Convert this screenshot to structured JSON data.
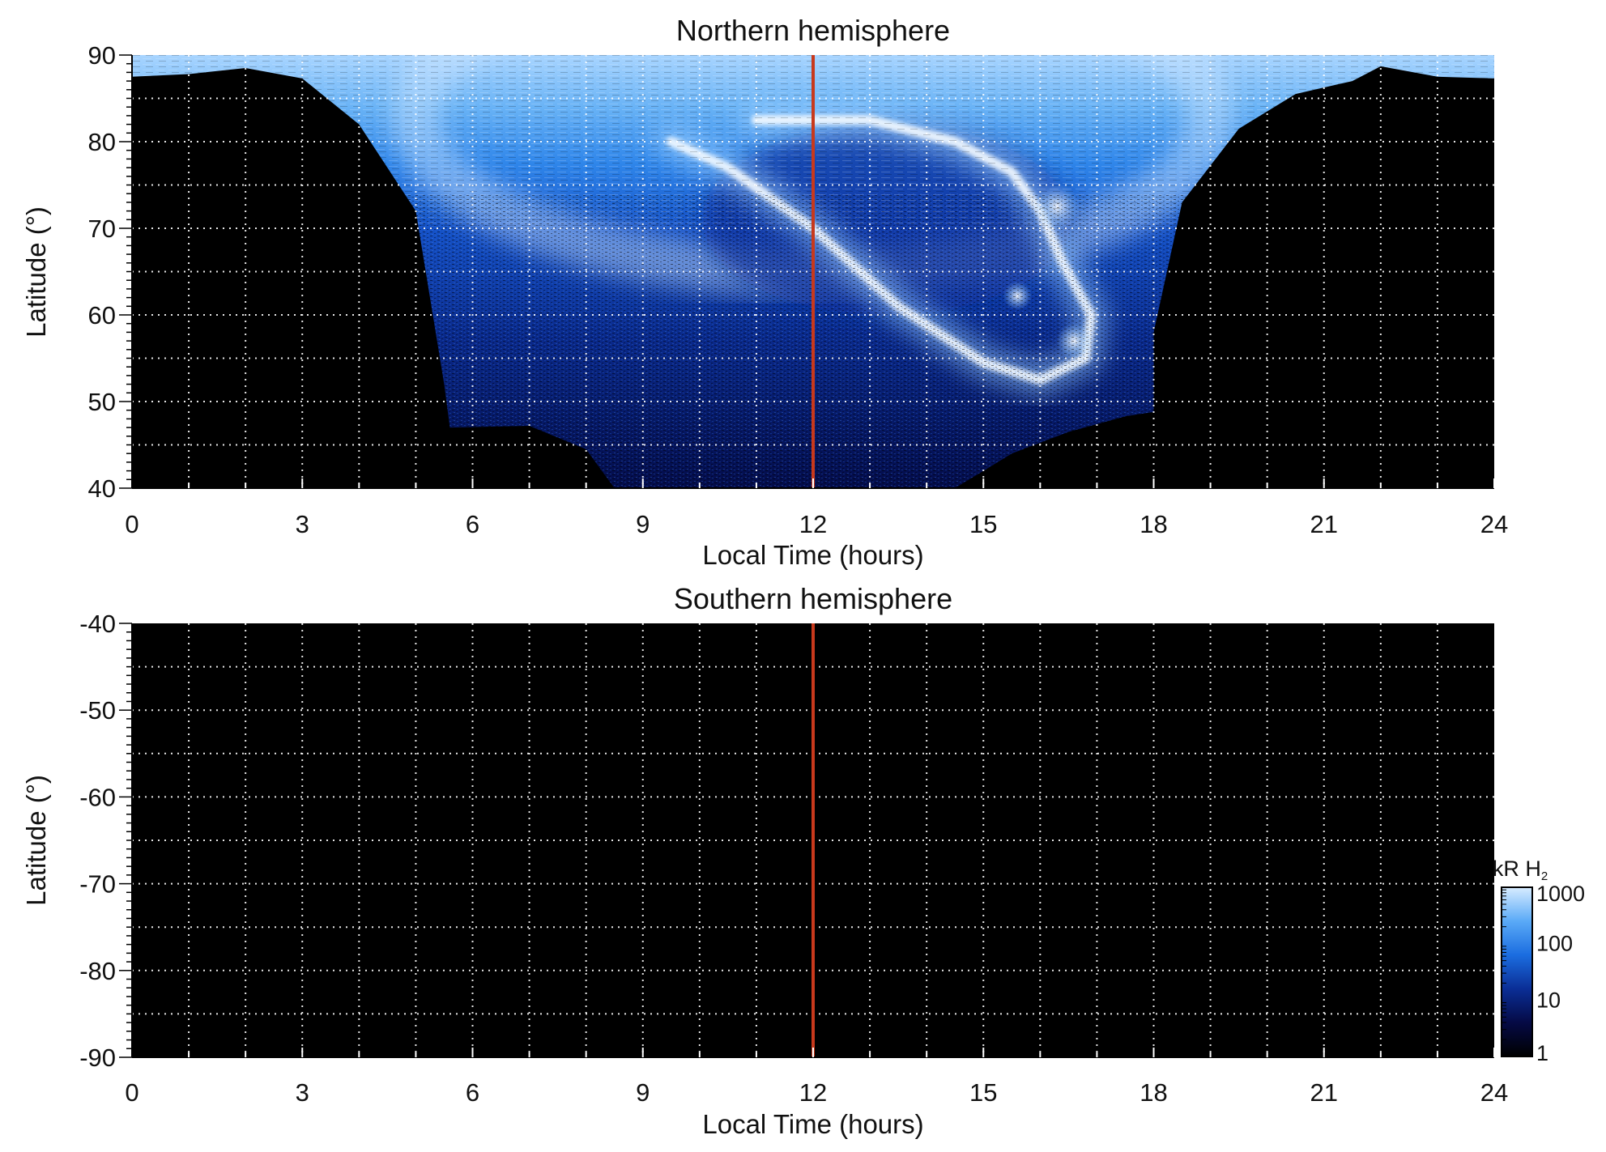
{
  "chart_data": [
    {
      "type": "heatmap",
      "title": "Northern hemisphere",
      "xlabel": "Local Time (hours)",
      "ylabel": "Latitude (°)",
      "xlim": [
        0,
        24
      ],
      "ylim": [
        40,
        90
      ],
      "x_ticks": [
        0,
        3,
        6,
        9,
        12,
        15,
        18,
        21,
        24
      ],
      "x_tick_labels": [
        "0",
        "3",
        "6",
        "9",
        "12",
        "15",
        "18",
        "21",
        "24"
      ],
      "y_ticks": [
        40,
        50,
        60,
        70,
        80,
        90
      ],
      "y_tick_labels": [
        "40",
        "50",
        "60",
        "70",
        "80",
        "90"
      ],
      "grid": true,
      "reference_line_x": 12,
      "reference_line_color": "#c8391c",
      "coverage_lower_boundary": [
        {
          "x": 0,
          "y": 87.5
        },
        {
          "x": 1,
          "y": 87.8
        },
        {
          "x": 2,
          "y": 88.5
        },
        {
          "x": 3,
          "y": 87.3
        },
        {
          "x": 4,
          "y": 82.0
        },
        {
          "x": 5,
          "y": 72.0
        },
        {
          "x": 5.5,
          "y": 52.0
        },
        {
          "x": 5.6,
          "y": 47.0
        },
        {
          "x": 7,
          "y": 47.2
        },
        {
          "x": 8,
          "y": 44.5
        },
        {
          "x": 8.5,
          "y": 40.0
        },
        {
          "x": 14.5,
          "y": 40.0
        },
        {
          "x": 15.5,
          "y": 44.0
        },
        {
          "x": 16.5,
          "y": 46.5
        },
        {
          "x": 17.5,
          "y": 48.3
        },
        {
          "x": 18,
          "y": 48.8
        },
        {
          "x": 18,
          "y": 58.0
        },
        {
          "x": 18.5,
          "y": 73.0
        },
        {
          "x": 19.5,
          "y": 81.5
        },
        {
          "x": 20.5,
          "y": 85.5
        },
        {
          "x": 21.5,
          "y": 87.0
        },
        {
          "x": 22,
          "y": 88.7
        },
        {
          "x": 23,
          "y": 87.5
        },
        {
          "x": 24,
          "y": 87.3
        }
      ],
      "auroral_arc": [
        {
          "x": 9.5,
          "y": 80.0
        },
        {
          "x": 10.5,
          "y": 77.0
        },
        {
          "x": 12,
          "y": 70.0
        },
        {
          "x": 13.5,
          "y": 61.0
        },
        {
          "x": 15,
          "y": 54.5
        },
        {
          "x": 16,
          "y": 52.5
        },
        {
          "x": 16.8,
          "y": 55.0
        },
        {
          "x": 16.9,
          "y": 60.0
        },
        {
          "x": 16.4,
          "y": 66.0
        },
        {
          "x": 16,
          "y": 72.0
        },
        {
          "x": 15.5,
          "y": 76.5
        },
        {
          "x": 14.5,
          "y": 80.0
        },
        {
          "x": 13,
          "y": 82.5
        },
        {
          "x": 11,
          "y": 82.5
        }
      ]
    },
    {
      "type": "heatmap",
      "title": "Southern hemisphere",
      "xlabel": "Local Time (hours)",
      "ylabel": "Latitude (°)",
      "xlim": [
        0,
        24
      ],
      "ylim": [
        -90,
        -40
      ],
      "x_ticks": [
        0,
        3,
        6,
        9,
        12,
        15,
        18,
        21,
        24
      ],
      "x_tick_labels": [
        "0",
        "3",
        "6",
        "9",
        "12",
        "15",
        "18",
        "21",
        "24"
      ],
      "y_ticks": [
        -40,
        -50,
        -60,
        -70,
        -80,
        -90
      ],
      "y_tick_labels": [
        "-40",
        "-50",
        "-60",
        "-70",
        "-80",
        "-90"
      ],
      "grid": true,
      "reference_line_x": 12,
      "reference_line_color": "#c8391c"
    }
  ],
  "colorbar": {
    "label_prefix": "kR H",
    "label_subscript": "2",
    "scale": "log",
    "range": [
      1,
      1000
    ],
    "tick_labels": [
      "1000",
      "100",
      "10",
      "1"
    ],
    "colors": [
      "#000000",
      "#050a45",
      "#0a2e96",
      "#1b6de0",
      "#5aaaf7",
      "#d7ecff"
    ]
  }
}
